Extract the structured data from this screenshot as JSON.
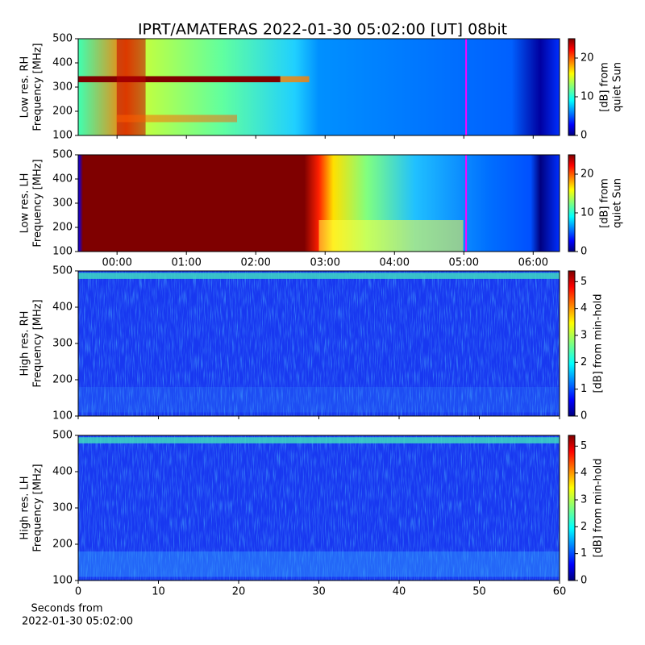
{
  "chart_data": [
    {
      "type": "heatmap",
      "title": "IPRT/AMATERAS 2022-01-30 05:02:00 [UT]   08bit",
      "ylabel": [
        "Low res. RH",
        "Frequency [MHz]"
      ],
      "ylim": [
        100,
        500
      ],
      "yticks": [
        100,
        200,
        300,
        400,
        500
      ],
      "xlim": [
        -0.56,
        6.38
      ],
      "marker_x": 5.033,
      "marker_color": "#ff00ff",
      "colorbar_label": [
        "[dB] from",
        "quiet Sun"
      ],
      "clim": [
        0,
        25
      ],
      "cticks": [
        0,
        10,
        20
      ],
      "colormap": "jet"
    },
    {
      "type": "heatmap",
      "ylabel": [
        "Low res. LH",
        "Frequency [MHz]"
      ],
      "ylim": [
        100,
        500
      ],
      "yticks": [
        100,
        200,
        300,
        400,
        500
      ],
      "xlim": [
        -0.56,
        6.38
      ],
      "xticks": [
        {
          "value": 0,
          "label": "00:00"
        },
        {
          "value": 1,
          "label": "01:00"
        },
        {
          "value": 2,
          "label": "02:00"
        },
        {
          "value": 3,
          "label": "03:00"
        },
        {
          "value": 4,
          "label": "04:00"
        },
        {
          "value": 5,
          "label": "05:00"
        },
        {
          "value": 6,
          "label": "06:00"
        }
      ],
      "marker_x": 5.033,
      "marker_color": "#ff00ff",
      "colorbar_label": [
        "[dB] from",
        "quiet Sun"
      ],
      "clim": [
        0,
        25
      ],
      "cticks": [
        0,
        10,
        20
      ],
      "colormap": "jet"
    },
    {
      "type": "heatmap",
      "ylabel": [
        "High res. RH",
        "Frequency [MHz]"
      ],
      "ylim": [
        100,
        500
      ],
      "yticks": [
        100,
        200,
        300,
        400,
        500
      ],
      "xlim": [
        0,
        60
      ],
      "colorbar_label": [
        "[dB] from min-hold"
      ],
      "clim": [
        0,
        5.4
      ],
      "cticks": [
        0,
        1,
        2,
        3,
        4,
        5
      ],
      "colormap": "jet"
    },
    {
      "type": "heatmap",
      "ylabel": [
        "High res. LH",
        "Frequency [MHz]"
      ],
      "ylim": [
        100,
        500
      ],
      "yticks": [
        100,
        200,
        300,
        400,
        500
      ],
      "xlim": [
        0,
        60
      ],
      "xticks": [
        0,
        10,
        20,
        30,
        40,
        50,
        60
      ],
      "xlabel": [
        "Seconds from",
        "2022-01-30 05:02:00"
      ],
      "colorbar_label": [
        "[dB] from min-hold"
      ],
      "clim": [
        0,
        5.4
      ],
      "cticks": [
        0,
        1,
        2,
        3,
        4,
        5
      ],
      "colormap": "jet"
    }
  ]
}
